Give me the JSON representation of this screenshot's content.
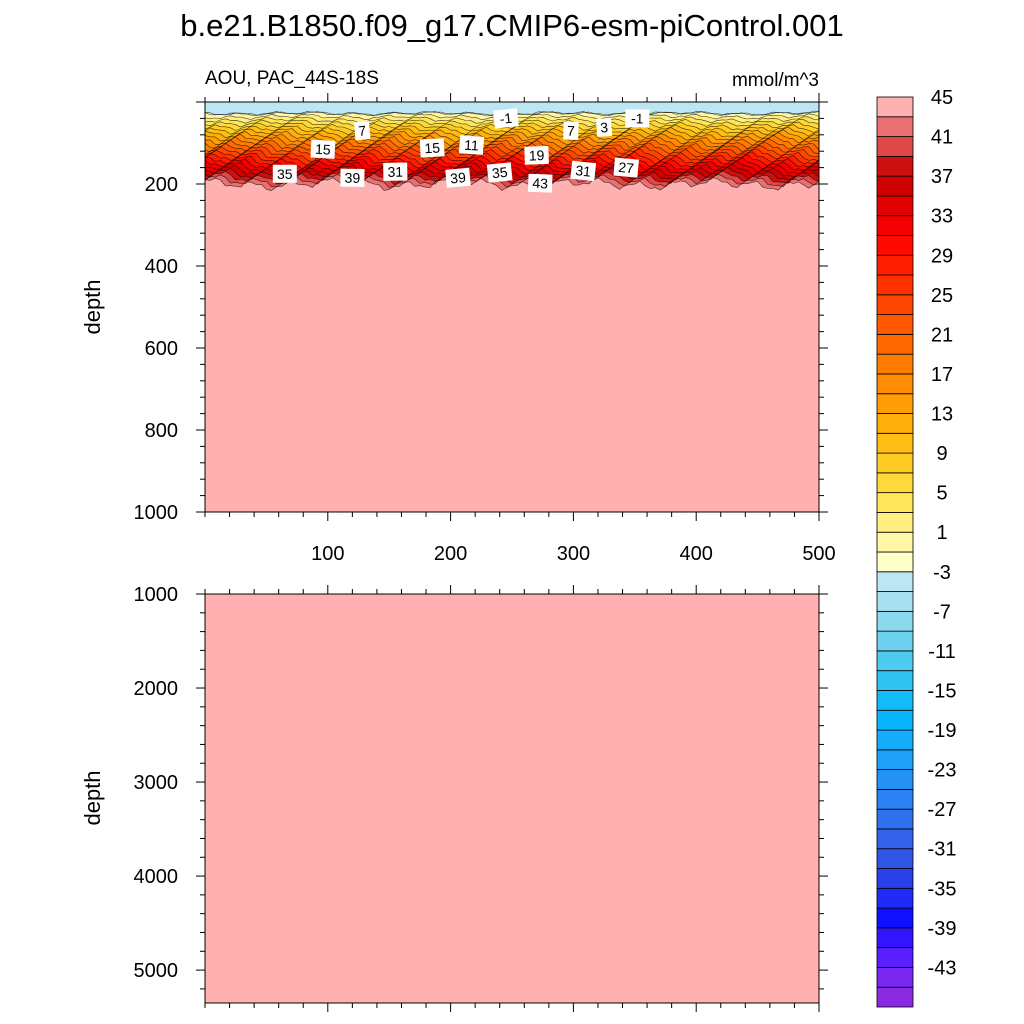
{
  "chart_data": {
    "type": "contour",
    "title": "b.e21.B1850.f09_g17.CMIP6-esm-piControl.001",
    "subtitle_left": "AOU, PAC_44S-18S",
    "subtitle_right": "mmol/m^3",
    "colorbar": {
      "levels": [
        -45,
        -43,
        -41,
        -39,
        -37,
        -35,
        -33,
        -31,
        -29,
        -27,
        -25,
        -23,
        -21,
        -19,
        -17,
        -15,
        -13,
        -11,
        -9,
        -7,
        -5,
        -3,
        -1,
        1,
        3,
        5,
        7,
        9,
        11,
        13,
        15,
        17,
        19,
        21,
        23,
        25,
        27,
        29,
        31,
        33,
        35,
        37,
        39,
        41,
        43,
        45
      ],
      "tick_labels": [
        "-43",
        "-39",
        "-35",
        "-31",
        "-27",
        "-23",
        "-19",
        "-15",
        "-11",
        "-7",
        "-3",
        "1",
        "5",
        "9",
        "13",
        "17",
        "21",
        "25",
        "29",
        "33",
        "37",
        "41",
        "45"
      ],
      "colors": [
        "#8a2be2",
        "#7a28f0",
        "#5a1eff",
        "#3314ff",
        "#1010ff",
        "#1e2cf5",
        "#2a40ea",
        "#2e55e5",
        "#3462e8",
        "#2e72ee",
        "#2a82f2",
        "#2592f5",
        "#1ea0f8",
        "#14acfb",
        "#08b6fd",
        "#12bcf8",
        "#30c4f2",
        "#4ecbee",
        "#6cd2ed",
        "#8cd8ee",
        "#a6dff0",
        "#bde6f3",
        "#ffffc8",
        "#fff6a6",
        "#ffee80",
        "#ffe55a",
        "#ffd93a",
        "#ffcc22",
        "#ffbe14",
        "#ffae0a",
        "#ff9e06",
        "#ff8c02",
        "#ff7c00",
        "#ff6a00",
        "#ff5800",
        "#ff4600",
        "#ff3300",
        "#ff1f00",
        "#ff0a00",
        "#f50000",
        "#e20000",
        "#d00000",
        "#cc1010",
        "#e04848",
        "#e87070",
        "#ffb0b0"
      ]
    },
    "top_panel": {
      "ylabel": "depth",
      "xlim": [
        0,
        500
      ],
      "ylim": [
        1000,
        0
      ],
      "xticks": [
        100,
        200,
        300,
        400,
        500
      ],
      "yticks": [
        200,
        400,
        600,
        800,
        1000
      ],
      "contour_labels": [
        {
          "text": "-1",
          "x": 245,
          "y": 40
        },
        {
          "text": "-1",
          "x": 352,
          "y": 40
        },
        {
          "text": "7",
          "x": 128,
          "y": 70
        },
        {
          "text": "7",
          "x": 298,
          "y": 70
        },
        {
          "text": "3",
          "x": 325,
          "y": 62
        },
        {
          "text": "15",
          "x": 96,
          "y": 115
        },
        {
          "text": "15",
          "x": 185,
          "y": 112
        },
        {
          "text": "11",
          "x": 217,
          "y": 105
        },
        {
          "text": "19",
          "x": 270,
          "y": 130
        },
        {
          "text": "27",
          "x": 343,
          "y": 160
        },
        {
          "text": "31",
          "x": 155,
          "y": 170
        },
        {
          "text": "31",
          "x": 308,
          "y": 168
        },
        {
          "text": "35",
          "x": 65,
          "y": 175
        },
        {
          "text": "35",
          "x": 240,
          "y": 172
        },
        {
          "text": "39",
          "x": 120,
          "y": 185
        },
        {
          "text": "39",
          "x": 206,
          "y": 185
        },
        {
          "text": "43",
          "x": 273,
          "y": 198
        }
      ]
    },
    "bottom_panel": {
      "ylabel": "depth",
      "xlim": [
        0,
        500
      ],
      "ylim": [
        5350,
        1000
      ],
      "yticks": [
        1000,
        2000,
        3000,
        4000,
        5000
      ]
    }
  }
}
